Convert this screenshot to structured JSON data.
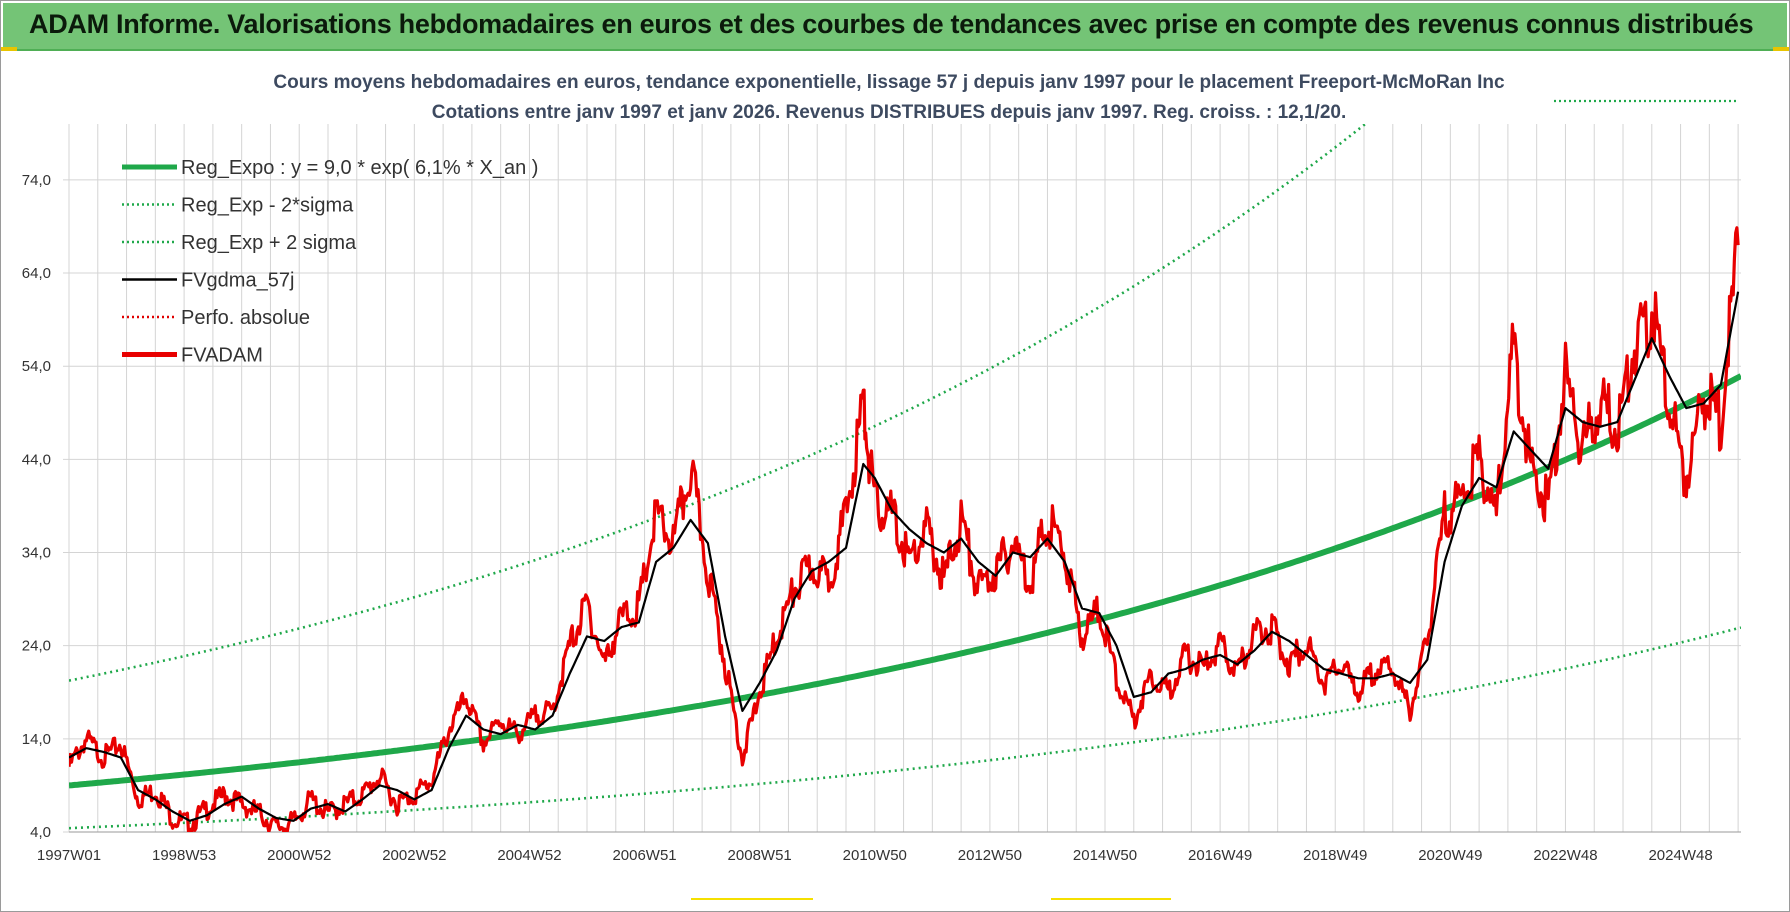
{
  "header": {
    "title": "ADAM Informe. Valorisations hebdomadaires en euros et des courbes de tendances avec prise en compte des revenus connus distribués"
  },
  "chart_data": {
    "type": "line",
    "title_line1": "Cours moyens hebdomadaires en euros, tendance exponentielle, lissage 57 j depuis janv 1997 pour le placement Freeport-McMoRan Inc",
    "title_line2": "Cotations entre janv 1997 et janv 2026. Revenus DISTRIBUES depuis janv 1997. Reg. croiss. : 12,1/20.",
    "xlabel": "",
    "ylabel": "",
    "ylim": [
      4,
      80
    ],
    "xlim": [
      1997.0,
      2026.05
    ],
    "y_ticks": [
      "4,0",
      "14,0",
      "24,0",
      "34,0",
      "44,0",
      "54,0",
      "64,0",
      "74,0"
    ],
    "y_tick_values": [
      4,
      14,
      24,
      34,
      44,
      54,
      64,
      74
    ],
    "x_ticks": [
      "1997W01",
      "1998W53",
      "2000W52",
      "2002W52",
      "2004W52",
      "2006W51",
      "2008W51",
      "2010W50",
      "2012W50",
      "2014W50",
      "2016W49",
      "2018W49",
      "2020W49",
      "2022W48",
      "2024W48"
    ],
    "x_tick_values": [
      1997.0,
      1999.0,
      2001.0,
      2003.0,
      2005.0,
      2007.0,
      2009.0,
      2011.0,
      2013.0,
      2015.0,
      2017.0,
      2019.0,
      2021.0,
      2023.0,
      2025.0
    ],
    "grid": true,
    "legend_position": "top-left",
    "legend": [
      {
        "label": "Reg_Expo : y = 9,0 * exp( 6,1% *  X_an )",
        "color": "#1fa84a",
        "style": "solid-thick"
      },
      {
        "label": "Reg_Exp - 2*sigma",
        "color": "#1fa84a",
        "style": "dotted"
      },
      {
        "label": "Reg_Exp + 2 sigma",
        "color": "#1fa84a",
        "style": "dotted"
      },
      {
        "label": "FVgdma_57j",
        "color": "#000000",
        "style": "solid"
      },
      {
        "label": "Perfo. absolue",
        "color": "#e00000",
        "style": "dotted"
      },
      {
        "label": "FVADAM",
        "color": "#e80000",
        "style": "solid-thick"
      }
    ],
    "regression": {
      "a": 9.0,
      "rate": 0.061,
      "start_year": 1997.0,
      "upper_factor": 2.25,
      "lower_factor": 0.49
    },
    "series": [
      {
        "name": "FVgdma_57j",
        "x": [
          1997.0,
          1997.3,
          1997.6,
          1997.9,
          1998.2,
          1998.5,
          1998.8,
          1999.1,
          1999.4,
          1999.7,
          2000.0,
          2000.3,
          2000.6,
          2000.9,
          2001.2,
          2001.5,
          2001.8,
          2002.1,
          2002.4,
          2002.7,
          2003.0,
          2003.3,
          2003.6,
          2003.9,
          2004.2,
          2004.5,
          2004.8,
          2005.1,
          2005.4,
          2005.7,
          2006.0,
          2006.3,
          2006.6,
          2006.9,
          2007.2,
          2007.5,
          2007.8,
          2008.1,
          2008.4,
          2008.7,
          2009.0,
          2009.3,
          2009.6,
          2009.9,
          2010.2,
          2010.5,
          2010.8,
          2011.0,
          2011.3,
          2011.6,
          2011.9,
          2012.2,
          2012.5,
          2012.8,
          2013.1,
          2013.4,
          2013.7,
          2014.0,
          2014.3,
          2014.6,
          2014.9,
          2015.2,
          2015.5,
          2015.8,
          2016.1,
          2016.4,
          2016.7,
          2017.0,
          2017.3,
          2017.6,
          2017.9,
          2018.2,
          2018.5,
          2018.8,
          2019.1,
          2019.4,
          2019.7,
          2020.0,
          2020.3,
          2020.6,
          2020.9,
          2021.2,
          2021.5,
          2021.8,
          2022.1,
          2022.4,
          2022.7,
          2023.0,
          2023.3,
          2023.6,
          2023.9,
          2024.2,
          2024.5,
          2024.8,
          2025.1,
          2025.4,
          2025.7,
          2026.0
        ],
        "values": [
          12.0,
          13.0,
          12.6,
          12.0,
          8.5,
          7.5,
          6.2,
          5.2,
          5.8,
          7.0,
          7.8,
          6.5,
          5.5,
          5.2,
          6.5,
          7.0,
          6.2,
          7.5,
          9.0,
          8.5,
          7.5,
          8.5,
          13.0,
          16.5,
          15.0,
          14.5,
          15.5,
          15.0,
          16.5,
          21.0,
          25.0,
          24.5,
          26.0,
          26.5,
          33.0,
          34.5,
          37.5,
          35.0,
          25.0,
          17.0,
          20.0,
          23.5,
          29.0,
          32.0,
          33.0,
          34.5,
          43.5,
          42.0,
          38.5,
          36.5,
          35.0,
          34.0,
          35.5,
          33.0,
          31.5,
          34.0,
          33.5,
          35.5,
          33.0,
          28.0,
          27.5,
          24.0,
          18.5,
          19.0,
          21.0,
          21.5,
          22.5,
          23.0,
          22.0,
          23.5,
          25.5,
          24.5,
          23.0,
          21.5,
          21.0,
          20.5,
          20.5,
          21.0,
          20.0,
          22.5,
          33.0,
          39.0,
          42.0,
          41.0,
          47.0,
          45.0,
          43.0,
          49.5,
          48.0,
          47.5,
          48.0,
          52.5,
          57.0,
          53.0,
          49.5,
          50.0,
          52.0,
          62.0
        ]
      },
      {
        "name": "FVADAM",
        "x": [
          1997.0,
          1997.3,
          1997.6,
          1997.9,
          1998.2,
          1998.5,
          1998.8,
          1999.1,
          1999.4,
          1999.7,
          2000.0,
          2000.3,
          2000.6,
          2000.9,
          2001.2,
          2001.5,
          2001.8,
          2002.1,
          2002.4,
          2002.7,
          2003.0,
          2003.3,
          2003.6,
          2003.9,
          2004.2,
          2004.5,
          2004.8,
          2005.1,
          2005.4,
          2005.7,
          2006.0,
          2006.3,
          2006.6,
          2006.9,
          2007.2,
          2007.5,
          2007.8,
          2008.1,
          2008.4,
          2008.7,
          2009.0,
          2009.3,
          2009.6,
          2009.9,
          2010.2,
          2010.5,
          2010.8,
          2011.0,
          2011.3,
          2011.6,
          2011.9,
          2012.2,
          2012.5,
          2012.8,
          2013.1,
          2013.4,
          2013.7,
          2014.0,
          2014.3,
          2014.6,
          2014.9,
          2015.2,
          2015.5,
          2015.8,
          2016.1,
          2016.4,
          2016.7,
          2017.0,
          2017.3,
          2017.6,
          2017.9,
          2018.2,
          2018.5,
          2018.8,
          2019.1,
          2019.4,
          2019.7,
          2020.0,
          2020.3,
          2020.6,
          2020.9,
          2021.2,
          2021.5,
          2021.8,
          2022.1,
          2022.4,
          2022.7,
          2023.0,
          2023.3,
          2023.6,
          2023.9,
          2024.2,
          2024.5,
          2024.8,
          2025.1,
          2025.4,
          2025.7,
          2026.0
        ],
        "values": [
          11.0,
          14.0,
          12.0,
          13.5,
          7.5,
          8.5,
          5.5,
          4.8,
          6.5,
          8.0,
          7.0,
          6.0,
          4.5,
          5.0,
          7.5,
          6.0,
          7.0,
          8.0,
          10.0,
          7.0,
          8.0,
          9.5,
          15.0,
          18.5,
          13.5,
          16.0,
          14.5,
          16.5,
          17.0,
          24.0,
          28.5,
          22.0,
          27.0,
          28.0,
          38.0,
          35.0,
          43.0,
          32.0,
          22.0,
          12.0,
          19.0,
          25.0,
          30.0,
          32.5,
          31.0,
          38.0,
          50.0,
          39.0,
          38.0,
          33.0,
          36.5,
          31.0,
          37.5,
          30.0,
          32.0,
          35.0,
          31.0,
          37.5,
          34.0,
          25.0,
          28.0,
          20.5,
          16.0,
          21.0,
          19.0,
          23.0,
          21.5,
          24.0,
          21.0,
          25.5,
          26.0,
          22.0,
          24.5,
          20.0,
          22.0,
          19.0,
          21.5,
          21.5,
          17.0,
          24.5,
          38.0,
          40.0,
          44.0,
          38.0,
          56.0,
          43.0,
          39.0,
          53.0,
          45.0,
          50.0,
          47.5,
          56.0,
          60.0,
          50.0,
          42.0,
          51.0,
          48.0,
          67.0
        ]
      }
    ]
  }
}
